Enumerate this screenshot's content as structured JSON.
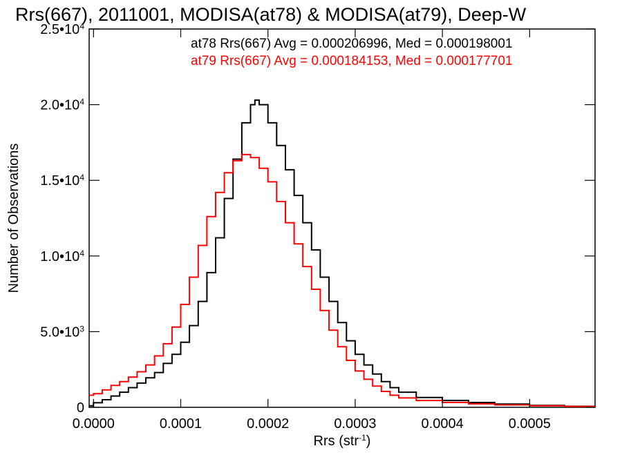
{
  "chart_data": {
    "type": "line",
    "title": "Rrs(667), 2011001, MODISA(at78) & MODISA(at79), Deep-W",
    "xlabel": "Rrs (str",
    "xlabel_sup": "-1",
    "xlabel_close": ")",
    "ylabel": "Number of Observations",
    "xlim": [
      -5e-06,
      0.000575
    ],
    "ylim": [
      0,
      25000
    ],
    "xticks": [
      0.0,
      0.0001,
      0.0002,
      0.0003,
      0.0004,
      0.0005
    ],
    "xtick_labels": [
      "0.0000",
      "0.0001",
      "0.0002",
      "0.0003",
      "0.0004",
      "0.0005"
    ],
    "yticks": [
      {
        "value": 0,
        "mant": "0",
        "exp": ""
      },
      {
        "value": 5000,
        "mant": "5.0•10",
        "exp": "3"
      },
      {
        "value": 10000,
        "mant": "1.0•10",
        "exp": "4"
      },
      {
        "value": 15000,
        "mant": "1.5•10",
        "exp": "4"
      },
      {
        "value": 20000,
        "mant": "2.0•10",
        "exp": "4"
      },
      {
        "value": 25000,
        "mant": "2.5•10",
        "exp": "4"
      }
    ],
    "grid": false,
    "legend_position": "top-right",
    "legend": [
      {
        "text": "at78 Rrs(667) Avg = 0.000206996, Med = 0.000198001",
        "color": "#000000"
      },
      {
        "text": "at79 Rrs(667) Avg = 0.000184153, Med = 0.000177701",
        "color": "#ff0000"
      }
    ],
    "series": [
      {
        "color": "#000000",
        "step": true,
        "points": [
          [
            -5e-06,
            100
          ],
          [
            0.0,
            300
          ],
          [
            1e-05,
            500
          ],
          [
            2e-05,
            750
          ],
          [
            3e-05,
            1000
          ],
          [
            4e-05,
            1300
          ],
          [
            5e-05,
            1600
          ],
          [
            6e-05,
            1950
          ],
          [
            7e-05,
            2300
          ],
          [
            8e-05,
            2900
          ],
          [
            9e-05,
            3500
          ],
          [
            0.0001,
            4300
          ],
          [
            0.00011,
            5400
          ],
          [
            0.00012,
            7000
          ],
          [
            0.00013,
            8900
          ],
          [
            0.00014,
            11200
          ],
          [
            0.00015,
            13800
          ],
          [
            0.00016,
            16400
          ],
          [
            0.00017,
            18800
          ],
          [
            0.00018,
            20000
          ],
          [
            0.000185,
            20300
          ],
          [
            0.00019,
            20000
          ],
          [
            0.0002,
            18800
          ],
          [
            0.00021,
            17300
          ],
          [
            0.00022,
            15700
          ],
          [
            0.00023,
            14000
          ],
          [
            0.00024,
            12200
          ],
          [
            0.00025,
            10400
          ],
          [
            0.00026,
            8600
          ],
          [
            0.00027,
            7000
          ],
          [
            0.00028,
            5600
          ],
          [
            0.00029,
            4400
          ],
          [
            0.0003,
            3500
          ],
          [
            0.00031,
            2800
          ],
          [
            0.00032,
            2200
          ],
          [
            0.00033,
            1700
          ],
          [
            0.00034,
            1300
          ],
          [
            0.00035,
            1000
          ],
          [
            0.00037,
            650
          ],
          [
            0.0004,
            450
          ],
          [
            0.00043,
            320
          ],
          [
            0.00046,
            220
          ],
          [
            0.0005,
            130
          ],
          [
            0.00054,
            70
          ],
          [
            0.000575,
            40
          ]
        ]
      },
      {
        "color": "#ff0000",
        "step": true,
        "points": [
          [
            -5e-06,
            800
          ],
          [
            0.0,
            900
          ],
          [
            1e-05,
            1150
          ],
          [
            2e-05,
            1450
          ],
          [
            3e-05,
            1700
          ],
          [
            4e-05,
            2000
          ],
          [
            5e-05,
            2350
          ],
          [
            6e-05,
            2800
          ],
          [
            7e-05,
            3400
          ],
          [
            8e-05,
            4200
          ],
          [
            9e-05,
            5300
          ],
          [
            0.0001,
            6800
          ],
          [
            0.00011,
            8600
          ],
          [
            0.00012,
            10700
          ],
          [
            0.00013,
            12600
          ],
          [
            0.00014,
            14200
          ],
          [
            0.00015,
            15500
          ],
          [
            0.00016,
            16300
          ],
          [
            0.00017,
            16700
          ],
          [
            0.00018,
            16500
          ],
          [
            0.00019,
            15800
          ],
          [
            0.0002,
            14900
          ],
          [
            0.00021,
            13600
          ],
          [
            0.00022,
            12200
          ],
          [
            0.00023,
            10800
          ],
          [
            0.00024,
            9300
          ],
          [
            0.00025,
            7800
          ],
          [
            0.00026,
            6400
          ],
          [
            0.00027,
            5100
          ],
          [
            0.00028,
            4000
          ],
          [
            0.00029,
            3100
          ],
          [
            0.0003,
            2400
          ],
          [
            0.00031,
            1850
          ],
          [
            0.00032,
            1400
          ],
          [
            0.00033,
            1050
          ],
          [
            0.00034,
            800
          ],
          [
            0.00035,
            620
          ],
          [
            0.00037,
            450
          ],
          [
            0.0004,
            320
          ],
          [
            0.00043,
            230
          ],
          [
            0.00046,
            160
          ],
          [
            0.0005,
            100
          ],
          [
            0.00054,
            60
          ],
          [
            0.000575,
            35
          ]
        ]
      }
    ]
  }
}
